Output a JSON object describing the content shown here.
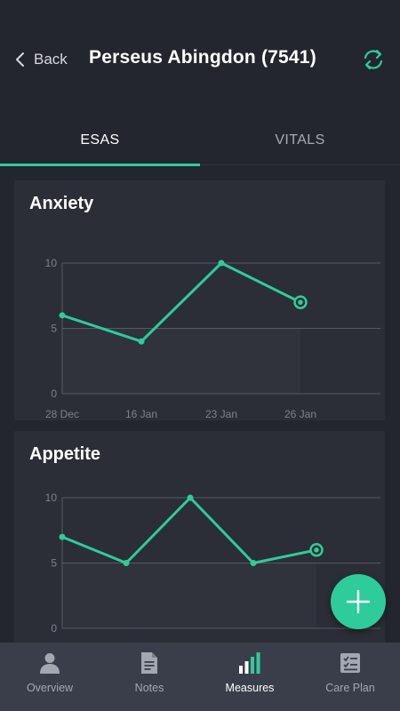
{
  "header": {
    "back_label": "Back",
    "title": "Perseus Abingdon (7541)",
    "sync_icon": "sync-icon"
  },
  "tabs": [
    {
      "label": "ESAS",
      "active": true
    },
    {
      "label": "VITALS",
      "active": false
    }
  ],
  "colors": {
    "accent": "#2ecc9a",
    "background": "#23262e",
    "card": "#2b2e36",
    "nav": "#3a3e4b"
  },
  "chart_data": [
    {
      "type": "line",
      "title": "Anxiety",
      "x": [
        "28 Dec",
        "16 Jan",
        "23 Jan",
        "26 Jan"
      ],
      "values": [
        6,
        4,
        10,
        7
      ],
      "ylim": [
        0,
        10
      ],
      "yticks": [
        0,
        5,
        10
      ],
      "grid": true
    },
    {
      "type": "line",
      "title": "Appetite",
      "x": [
        "",
        "",
        "",
        "",
        ""
      ],
      "values": [
        7,
        5,
        10,
        5,
        6
      ],
      "ylim": [
        0,
        10
      ],
      "yticks": [
        0,
        5,
        10
      ],
      "grid": true
    }
  ],
  "fab": {
    "icon": "plus-icon"
  },
  "bottom_nav": [
    {
      "label": "Overview",
      "icon": "person-icon",
      "active": false
    },
    {
      "label": "Notes",
      "icon": "document-icon",
      "active": false
    },
    {
      "label": "Measures",
      "icon": "bar-chart-icon",
      "active": true
    },
    {
      "label": "Care Plan",
      "icon": "checklist-icon",
      "active": false
    }
  ]
}
